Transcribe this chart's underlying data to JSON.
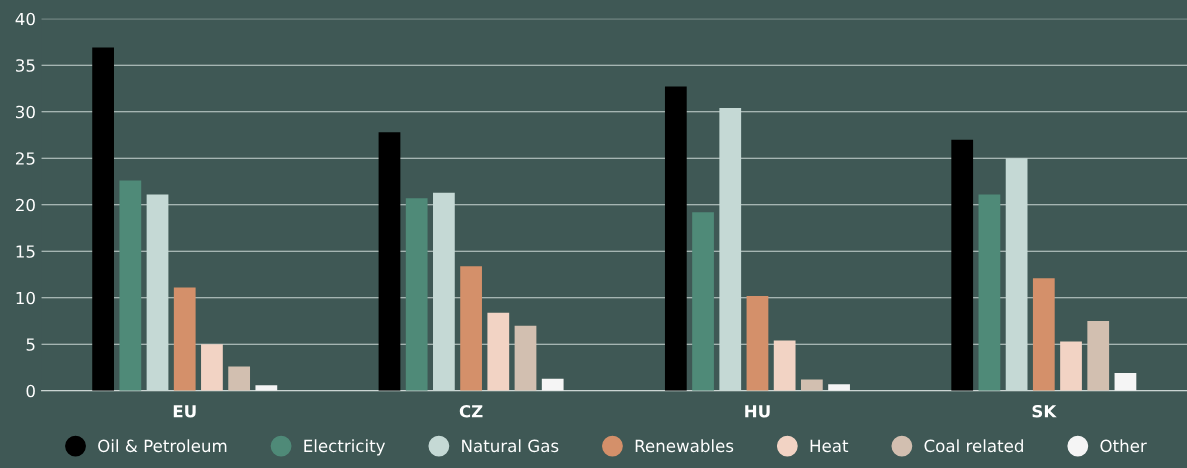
{
  "chart_data": {
    "type": "bar",
    "categories": [
      "EU",
      "CZ",
      "HU",
      "SK"
    ],
    "series": [
      {
        "name": "Oil & Petroleum",
        "color": "#000000",
        "values": [
          36.9,
          27.8,
          32.7,
          27.0
        ]
      },
      {
        "name": "Electricity",
        "color": "#4f8a78",
        "values": [
          22.6,
          20.7,
          19.2,
          21.1
        ]
      },
      {
        "name": "Natural Gas",
        "color": "#c5d9d5",
        "values": [
          21.1,
          21.3,
          30.4,
          25.0
        ]
      },
      {
        "name": "Renewables",
        "color": "#d4906a",
        "values": [
          11.1,
          13.4,
          10.2,
          12.1
        ]
      },
      {
        "name": "Heat",
        "color": "#f2d3c4",
        "values": [
          5.0,
          8.4,
          5.4,
          5.3
        ]
      },
      {
        "name": "Coal related",
        "color": "#d2bfb0",
        "values": [
          2.6,
          7.0,
          1.2,
          7.5
        ]
      },
      {
        "name": "Other",
        "color": "#f5f5f5",
        "values": [
          0.6,
          1.3,
          0.7,
          1.9
        ]
      }
    ],
    "ylim": [
      0,
      40
    ],
    "yticks": [
      0,
      5,
      10,
      15,
      20,
      25,
      30,
      35,
      40
    ],
    "grid": "y",
    "legend": "bottom"
  }
}
